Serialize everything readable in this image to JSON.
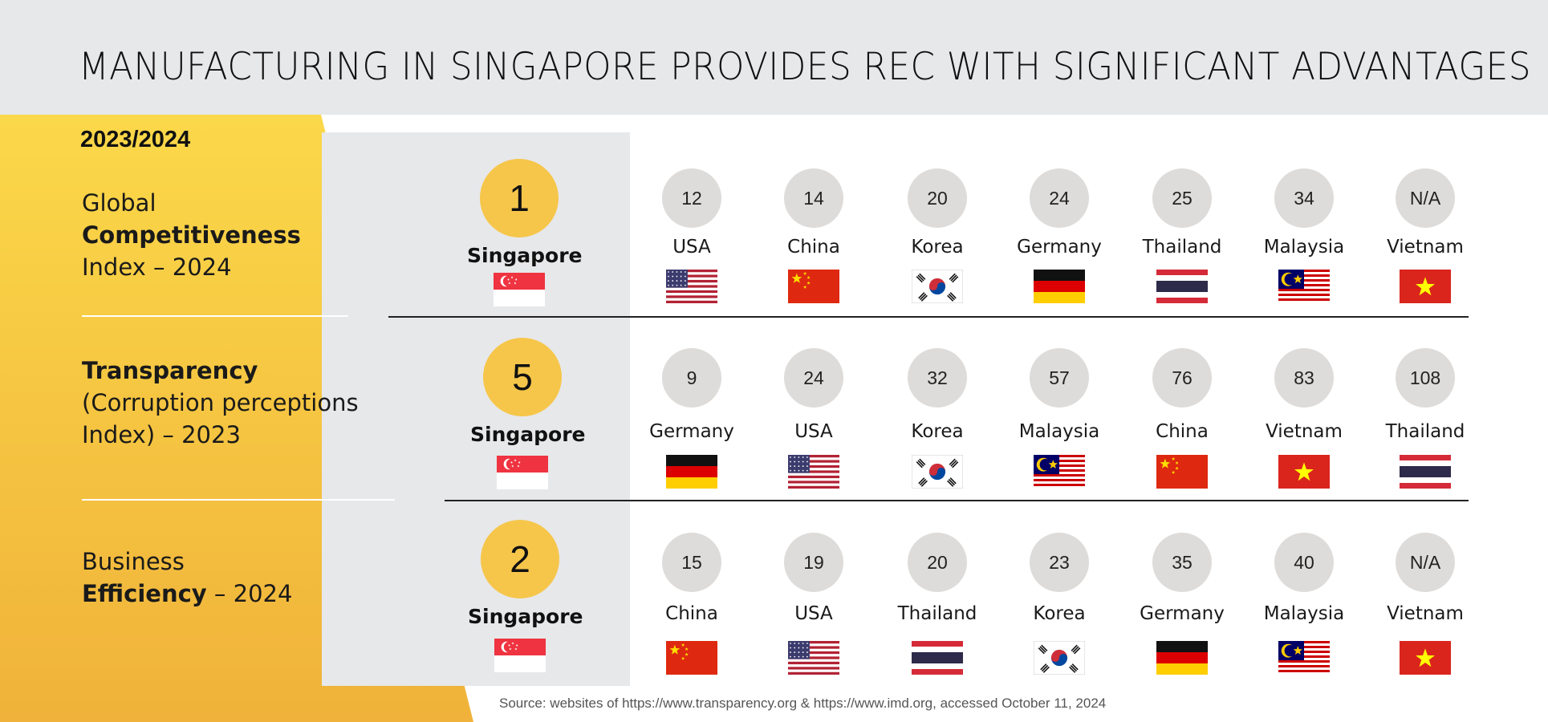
{
  "title": "MANUFACTURING IN SINGAPORE PROVIDES REC WITH SIGNIFICANT ADVANTAGES",
  "year": "2023/2024",
  "categories": [
    {
      "line1": "Global",
      "line2_bold": "Competitiveness",
      "line3": "Index – 2024"
    },
    {
      "line1_bold": "Transparency",
      "line2": "(Corruption perceptions",
      "line3": "Index) – 2023"
    },
    {
      "line1": "Business",
      "line2_bold": "Efficiency",
      "line2_rest": " – 2024"
    }
  ],
  "rows": [
    {
      "singapore": {
        "rank": "1",
        "name": "Singapore",
        "flag": "sg-flag"
      },
      "countries": [
        {
          "rank": "12",
          "name": "USA",
          "flag": "us-flag"
        },
        {
          "rank": "14",
          "name": "China",
          "flag": "cn-flag"
        },
        {
          "rank": "20",
          "name": "Korea",
          "flag": "kr-flag"
        },
        {
          "rank": "24",
          "name": "Germany",
          "flag": "de-flag"
        },
        {
          "rank": "25",
          "name": "Thailand",
          "flag": "th-flag"
        },
        {
          "rank": "34",
          "name": "Malaysia",
          "flag": "my-flag"
        },
        {
          "rank": "N/A",
          "name": "Vietnam",
          "flag": "vn-flag"
        }
      ]
    },
    {
      "singapore": {
        "rank": "5",
        "name": "Singapore",
        "flag": "sg-flag"
      },
      "countries": [
        {
          "rank": "9",
          "name": "Germany",
          "flag": "de-flag"
        },
        {
          "rank": "24",
          "name": "USA",
          "flag": "us-flag"
        },
        {
          "rank": "32",
          "name": "Korea",
          "flag": "kr-flag"
        },
        {
          "rank": "57",
          "name": "Malaysia",
          "flag": "my-flag"
        },
        {
          "rank": "76",
          "name": "China",
          "flag": "cn-flag"
        },
        {
          "rank": "83",
          "name": "Vietnam",
          "flag": "vn-flag"
        },
        {
          "rank": "108",
          "name": "Thailand",
          "flag": "th-flag"
        }
      ]
    },
    {
      "singapore": {
        "rank": "2",
        "name": "Singapore",
        "flag": "sg-flag"
      },
      "countries": [
        {
          "rank": "15",
          "name": "China",
          "flag": "cn-flag"
        },
        {
          "rank": "19",
          "name": "USA",
          "flag": "us-flag"
        },
        {
          "rank": "20",
          "name": "Thailand",
          "flag": "th-flag"
        },
        {
          "rank": "23",
          "name": "Korea",
          "flag": "kr-flag"
        },
        {
          "rank": "35",
          "name": "Germany",
          "flag": "de-flag"
        },
        {
          "rank": "40",
          "name": "Malaysia",
          "flag": "my-flag"
        },
        {
          "rank": "N/A",
          "name": "Vietnam",
          "flag": "vn-flag"
        }
      ]
    }
  ],
  "source": "Source: websites of https://www.transparency.org  &  https://www.imd.org, accessed October 11, 2024",
  "colors": {
    "accent_yellow": "#f6c64a",
    "panel_gray": "#e7e8ea",
    "rank_circle": "#dedcda"
  }
}
